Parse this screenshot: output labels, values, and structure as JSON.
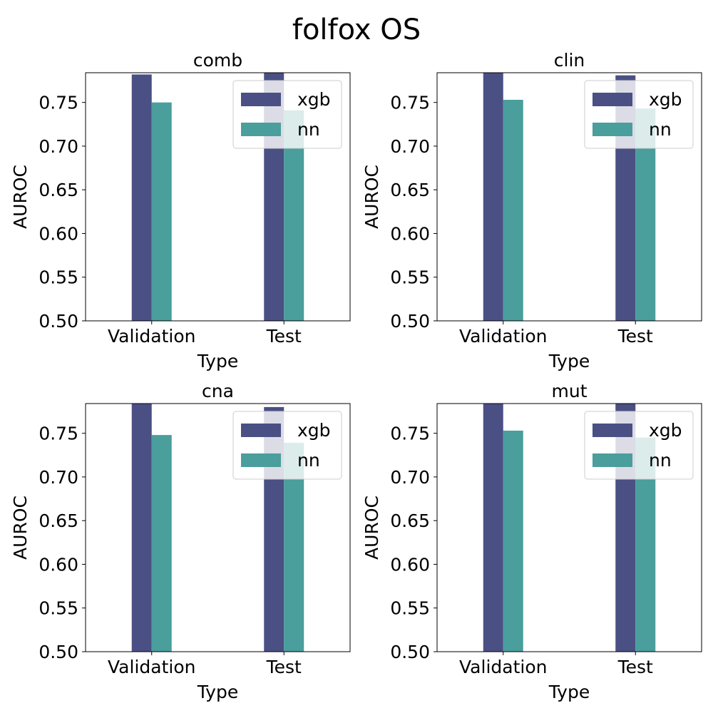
{
  "title": "folfox OS",
  "chart_data": [
    {
      "type": "bar",
      "title": "comb",
      "categories": [
        "Validation",
        "Test"
      ],
      "series": [
        {
          "name": "xgb",
          "values": [
            0.782,
            0.787
          ]
        },
        {
          "name": "nn",
          "values": [
            0.75,
            0.741
          ]
        }
      ],
      "xlabel": "Type",
      "ylabel": "AUROC",
      "ylim": [
        0.5,
        0.784
      ],
      "yticks": [
        "0.50",
        "0.55",
        "0.60",
        "0.65",
        "0.70",
        "0.75"
      ],
      "legend_position": "top-right"
    },
    {
      "type": "bar",
      "title": "clin",
      "categories": [
        "Validation",
        "Test"
      ],
      "series": [
        {
          "name": "xgb",
          "values": [
            0.79,
            0.781
          ]
        },
        {
          "name": "nn",
          "values": [
            0.753,
            0.743
          ]
        }
      ],
      "xlabel": "Type",
      "ylabel": "AUROC",
      "ylim": [
        0.5,
        0.784
      ],
      "yticks": [
        "0.50",
        "0.55",
        "0.60",
        "0.65",
        "0.70",
        "0.75"
      ],
      "legend_position": "top-right"
    },
    {
      "type": "bar",
      "title": "cna",
      "categories": [
        "Validation",
        "Test"
      ],
      "series": [
        {
          "name": "xgb",
          "values": [
            0.79,
            0.78
          ]
        },
        {
          "name": "nn",
          "values": [
            0.748,
            0.739
          ]
        }
      ],
      "xlabel": "Type",
      "ylabel": "AUROC",
      "ylim": [
        0.5,
        0.784
      ],
      "yticks": [
        "0.50",
        "0.55",
        "0.60",
        "0.65",
        "0.70",
        "0.75"
      ],
      "legend_position": "top-right"
    },
    {
      "type": "bar",
      "title": "mut",
      "categories": [
        "Validation",
        "Test"
      ],
      "series": [
        {
          "name": "xgb",
          "values": [
            0.79,
            0.79
          ]
        },
        {
          "name": "nn",
          "values": [
            0.753,
            0.745
          ]
        }
      ],
      "xlabel": "Type",
      "ylabel": "AUROC",
      "ylim": [
        0.5,
        0.784
      ],
      "yticks": [
        "0.50",
        "0.55",
        "0.60",
        "0.65",
        "0.70",
        "0.75"
      ],
      "legend_position": "top-right"
    }
  ],
  "colors": {
    "xgb": "#4a5083",
    "nn": "#4a9e9c"
  }
}
